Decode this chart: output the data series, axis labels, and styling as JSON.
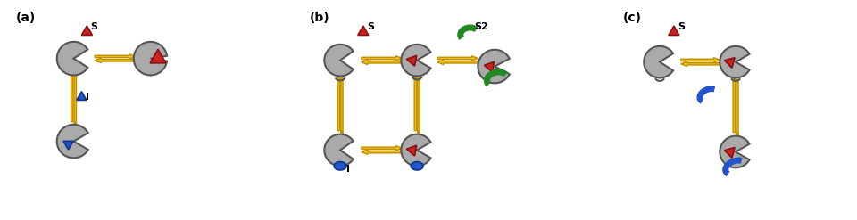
{
  "bg_color": "#ffffff",
  "enzyme_color": "#aaaaaa",
  "enzyme_edge": "#555555",
  "substrate_color": "#cc2222",
  "substrate_edge": "#881111",
  "inhibitor_color": "#2255cc",
  "inhibitor_edge": "#113388",
  "s2_color": "#228822",
  "s2_edge": "#115511",
  "arrow_color": "#f0c010",
  "arrow_edge": "#c09000",
  "label_a": "(a)",
  "label_b": "(b)",
  "label_c": "(c)",
  "label_s": "S",
  "label_s2": "S2",
  "label_i": "I"
}
